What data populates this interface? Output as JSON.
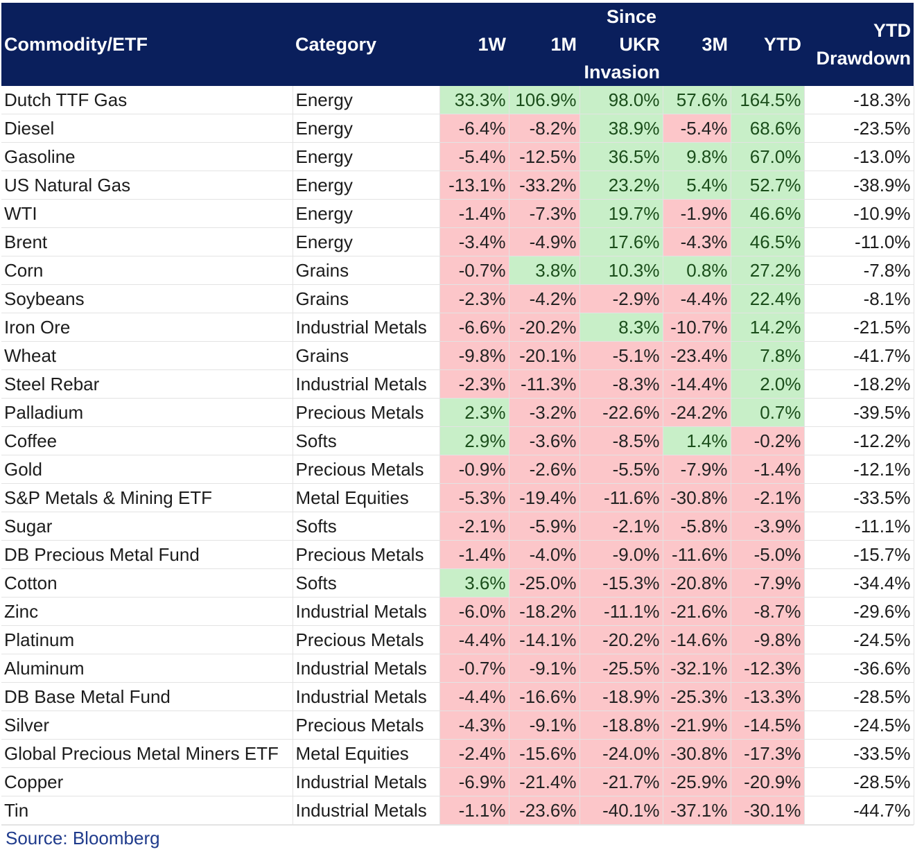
{
  "headers": {
    "commodity": "Commodity/ETF",
    "category": "Category",
    "w1": "1W",
    "m1": "1M",
    "since_line1": "Since",
    "since_line2": "UKR",
    "since_line3": "Invasion",
    "m3": "3M",
    "ytd": "YTD",
    "dd_line1": "YTD",
    "dd_line2": "Drawdown"
  },
  "colors": {
    "header_bg": "#0a1f5c",
    "neg_bg": "#fcc6c9",
    "pos_bg": "#c8efc8"
  },
  "rows": [
    [
      "Dutch TTF Gas",
      "Energy",
      "33.3%",
      "106.9%",
      "98.0%",
      "57.6%",
      "164.5%",
      "-18.3%"
    ],
    [
      "Diesel",
      "Energy",
      "-6.4%",
      "-8.2%",
      "38.9%",
      "-5.4%",
      "68.6%",
      "-23.5%"
    ],
    [
      "Gasoline",
      "Energy",
      "-5.4%",
      "-12.5%",
      "36.5%",
      "9.8%",
      "67.0%",
      "-13.0%"
    ],
    [
      "US Natural Gas",
      "Energy",
      "-13.1%",
      "-33.2%",
      "23.2%",
      "5.4%",
      "52.7%",
      "-38.9%"
    ],
    [
      "WTI",
      "Energy",
      "-1.4%",
      "-7.3%",
      "19.7%",
      "-1.9%",
      "46.6%",
      "-10.9%"
    ],
    [
      "Brent",
      "Energy",
      "-3.4%",
      "-4.9%",
      "17.6%",
      "-4.3%",
      "46.5%",
      "-11.0%"
    ],
    [
      "Corn",
      "Grains",
      "-0.7%",
      "3.8%",
      "10.3%",
      "0.8%",
      "27.2%",
      "-7.8%"
    ],
    [
      "Soybeans",
      "Grains",
      "-2.3%",
      "-4.2%",
      "-2.9%",
      "-4.4%",
      "22.4%",
      "-8.1%"
    ],
    [
      "Iron Ore",
      "Industrial Metals",
      "-6.6%",
      "-20.2%",
      "8.3%",
      "-10.7%",
      "14.2%",
      "-21.5%"
    ],
    [
      "Wheat",
      "Grains",
      "-9.8%",
      "-20.1%",
      "-5.1%",
      "-23.4%",
      "7.8%",
      "-41.7%"
    ],
    [
      "Steel Rebar",
      "Industrial Metals",
      "-2.3%",
      "-11.3%",
      "-8.3%",
      "-14.4%",
      "2.0%",
      "-18.2%"
    ],
    [
      "Palladium",
      "Precious Metals",
      "2.3%",
      "-3.2%",
      "-22.6%",
      "-24.2%",
      "0.7%",
      "-39.5%"
    ],
    [
      "Coffee",
      "Softs",
      "2.9%",
      "-3.6%",
      "-8.5%",
      "1.4%",
      "-0.2%",
      "-12.2%"
    ],
    [
      "Gold",
      "Precious Metals",
      "-0.9%",
      "-2.6%",
      "-5.5%",
      "-7.9%",
      "-1.4%",
      "-12.1%"
    ],
    [
      "S&P Metals & Mining ETF",
      "Metal Equities",
      "-5.3%",
      "-19.4%",
      "-11.6%",
      "-30.8%",
      "-2.1%",
      "-33.5%"
    ],
    [
      "Sugar",
      "Softs",
      "-2.1%",
      "-5.9%",
      "-2.1%",
      "-5.8%",
      "-3.9%",
      "-11.1%"
    ],
    [
      "DB Precious Metal Fund",
      "Precious Metals",
      "-1.4%",
      "-4.0%",
      "-9.0%",
      "-11.6%",
      "-5.0%",
      "-15.7%"
    ],
    [
      "Cotton",
      "Softs",
      "3.6%",
      "-25.0%",
      "-15.3%",
      "-20.8%",
      "-7.9%",
      "-34.4%"
    ],
    [
      "Zinc",
      "Industrial Metals",
      "-6.0%",
      "-18.2%",
      "-11.1%",
      "-21.6%",
      "-8.7%",
      "-29.6%"
    ],
    [
      "Platinum",
      "Precious Metals",
      "-4.4%",
      "-14.1%",
      "-20.2%",
      "-14.6%",
      "-9.8%",
      "-24.5%"
    ],
    [
      "Aluminum",
      "Industrial Metals",
      "-0.7%",
      "-9.1%",
      "-25.5%",
      "-32.1%",
      "-12.3%",
      "-36.6%"
    ],
    [
      "DB Base Metal Fund",
      "Industrial Metals",
      "-4.4%",
      "-16.6%",
      "-18.9%",
      "-25.3%",
      "-13.3%",
      "-28.5%"
    ],
    [
      "Silver",
      "Precious Metals",
      "-4.3%",
      "-9.1%",
      "-18.8%",
      "-21.9%",
      "-14.5%",
      "-24.5%"
    ],
    [
      "Global Precious Metal Miners ETF",
      "Metal Equities",
      "-2.4%",
      "-15.6%",
      "-24.0%",
      "-30.8%",
      "-17.3%",
      "-33.5%"
    ],
    [
      "Copper",
      "Industrial Metals",
      "-6.9%",
      "-21.4%",
      "-21.7%",
      "-25.9%",
      "-20.9%",
      "-28.5%"
    ],
    [
      "Tin",
      "Industrial Metals",
      "-1.1%",
      "-23.6%",
      "-40.1%",
      "-37.1%",
      "-30.1%",
      "-44.7%"
    ]
  ],
  "source": "Source: Bloomberg"
}
